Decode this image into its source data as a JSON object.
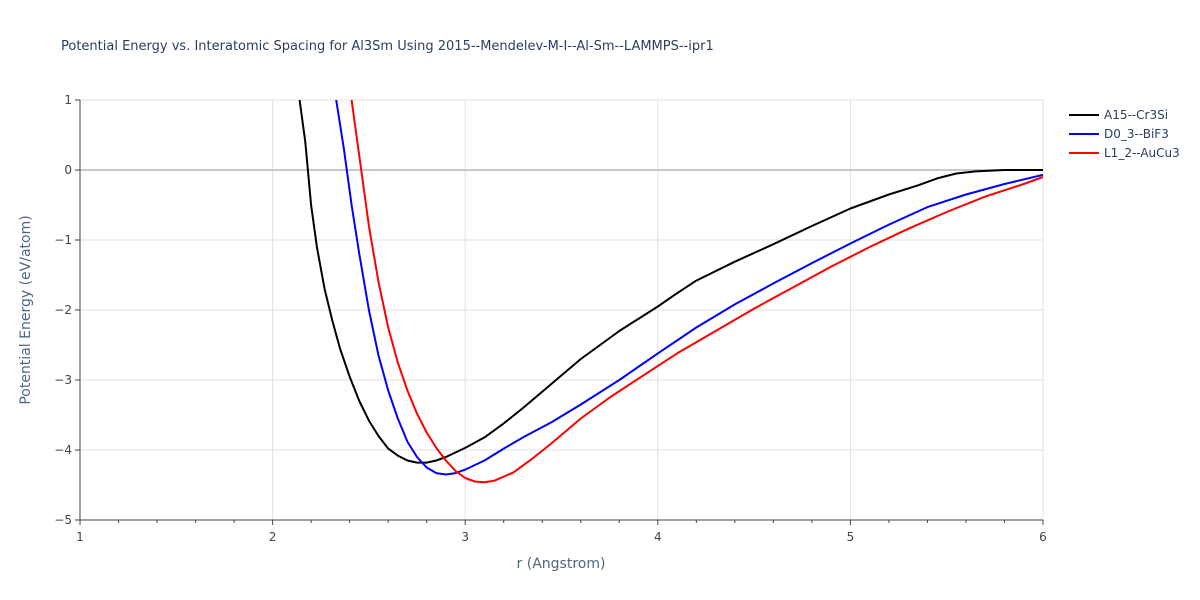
{
  "chart_data": {
    "type": "line",
    "title": "Potential Energy vs. Interatomic Spacing for Al3Sm Using 2015--Mendelev-M-I--Al-Sm--LAMMPS--ipr1",
    "xlabel": "r (Angstrom)",
    "ylabel": "Potential Energy (eV/atom)",
    "xlim": [
      1,
      6
    ],
    "ylim": [
      -5,
      1
    ],
    "xticks": [
      1,
      2,
      3,
      4,
      5,
      6
    ],
    "yticks": [
      1,
      0,
      -1,
      -2,
      -3,
      -4,
      -5
    ],
    "xtick_labels": [
      "1",
      "2",
      "3",
      "4",
      "5",
      "6"
    ],
    "ytick_labels": [
      "1",
      "0",
      "−1",
      "−2",
      "−3",
      "−4",
      "−5"
    ],
    "grid": true,
    "legend": "top-right",
    "series": [
      {
        "name": "A15--Cr3Si",
        "color": "#000000",
        "x": [
          2.14,
          2.17,
          2.2,
          2.23,
          2.27,
          2.31,
          2.35,
          2.4,
          2.45,
          2.5,
          2.55,
          2.6,
          2.65,
          2.7,
          2.75,
          2.8,
          2.85,
          2.9,
          3.0,
          3.1,
          3.2,
          3.3,
          3.45,
          3.6,
          3.8,
          4.0,
          4.1,
          4.2,
          4.4,
          4.6,
          4.8,
          5.0,
          5.2,
          5.35,
          5.45,
          5.55,
          5.65,
          5.8,
          6.0
        ],
        "y": [
          1.0,
          0.4,
          -0.5,
          -1.1,
          -1.7,
          -2.15,
          -2.55,
          -2.95,
          -3.3,
          -3.58,
          -3.8,
          -3.98,
          -4.08,
          -4.15,
          -4.18,
          -4.18,
          -4.15,
          -4.1,
          -3.97,
          -3.82,
          -3.62,
          -3.4,
          -3.05,
          -2.7,
          -2.3,
          -1.95,
          -1.76,
          -1.58,
          -1.31,
          -1.06,
          -0.8,
          -0.55,
          -0.35,
          -0.22,
          -0.12,
          -0.05,
          -0.02,
          0.0,
          0.0
        ]
      },
      {
        "name": "D0_3--BiF3",
        "color": "#0000ff",
        "x": [
          2.33,
          2.37,
          2.41,
          2.45,
          2.5,
          2.55,
          2.6,
          2.65,
          2.7,
          2.75,
          2.8,
          2.85,
          2.9,
          2.95,
          3.0,
          3.1,
          3.2,
          3.3,
          3.45,
          3.6,
          3.8,
          4.0,
          4.2,
          4.4,
          4.6,
          4.8,
          5.0,
          5.2,
          5.4,
          5.6,
          5.8,
          6.0
        ],
        "y": [
          1.0,
          0.3,
          -0.5,
          -1.2,
          -2.0,
          -2.65,
          -3.15,
          -3.55,
          -3.88,
          -4.1,
          -4.25,
          -4.33,
          -4.35,
          -4.33,
          -4.28,
          -4.15,
          -3.98,
          -3.82,
          -3.6,
          -3.35,
          -3.0,
          -2.62,
          -2.25,
          -1.92,
          -1.62,
          -1.33,
          -1.05,
          -0.78,
          -0.53,
          -0.35,
          -0.2,
          -0.07
        ]
      },
      {
        "name": "L1_2--AuCu3",
        "color": "#ff0000",
        "x": [
          2.41,
          2.45,
          2.5,
          2.55,
          2.6,
          2.65,
          2.7,
          2.75,
          2.8,
          2.85,
          2.9,
          2.95,
          3.0,
          3.05,
          3.1,
          3.15,
          3.25,
          3.35,
          3.45,
          3.6,
          3.75,
          3.9,
          4.1,
          4.3,
          4.5,
          4.7,
          4.9,
          5.1,
          5.3,
          5.5,
          5.7,
          5.9,
          6.0
        ],
        "y": [
          1.0,
          0.2,
          -0.8,
          -1.6,
          -2.25,
          -2.75,
          -3.15,
          -3.48,
          -3.75,
          -3.97,
          -4.15,
          -4.3,
          -4.4,
          -4.45,
          -4.46,
          -4.44,
          -4.32,
          -4.12,
          -3.9,
          -3.55,
          -3.25,
          -2.98,
          -2.62,
          -2.3,
          -1.98,
          -1.68,
          -1.38,
          -1.1,
          -0.84,
          -0.6,
          -0.38,
          -0.2,
          -0.1
        ]
      }
    ]
  }
}
